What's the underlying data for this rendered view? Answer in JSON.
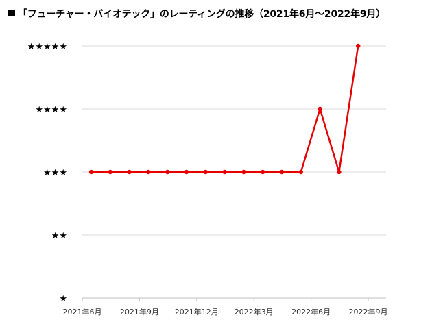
{
  "title": "「フューチャー・バイオテック」のレーティングの推移（2021年6月〜2022年9月）",
  "title_marker": "■",
  "chart_data": {
    "type": "line",
    "x": [
      "2021-06",
      "2021-07",
      "2021-08",
      "2021-09",
      "2021-10",
      "2021-11",
      "2021-12",
      "2022-01",
      "2022-02",
      "2022-03",
      "2022-04",
      "2022-05",
      "2022-06",
      "2022-07",
      "2022-08",
      "2022-09"
    ],
    "xtick_values": [
      "2021-06",
      "2021-09",
      "2021-12",
      "2022-03",
      "2022-06",
      "2022-09"
    ],
    "xtick_labels": [
      "2021年6月",
      "2021年9月",
      "2021年12月",
      "2022年3月",
      "2022年6月",
      "2022年9月"
    ],
    "series": [
      {
        "values": [
          3,
          3,
          3,
          3,
          3,
          3,
          3,
          3,
          3,
          3,
          3,
          3,
          4,
          3,
          5
        ],
        "x": [
          "2021-06",
          "2021-07",
          "2021-08",
          "2021-09",
          "2021-10",
          "2021-11",
          "2021-12",
          "2022-01",
          "2022-02",
          "2022-03",
          "2022-04",
          "2022-05",
          "2022-06",
          "2022-07",
          "2022-08"
        ],
        "color": "#e60000"
      }
    ],
    "ytick_values": [
      1,
      2,
      3,
      4,
      5
    ],
    "ytick_labels": [
      "★",
      "★★",
      "★★★",
      "★★★★",
      "★★★★★"
    ],
    "ylim": [
      1,
      5
    ],
    "grid": true,
    "xlabel": "",
    "ylabel": ""
  }
}
